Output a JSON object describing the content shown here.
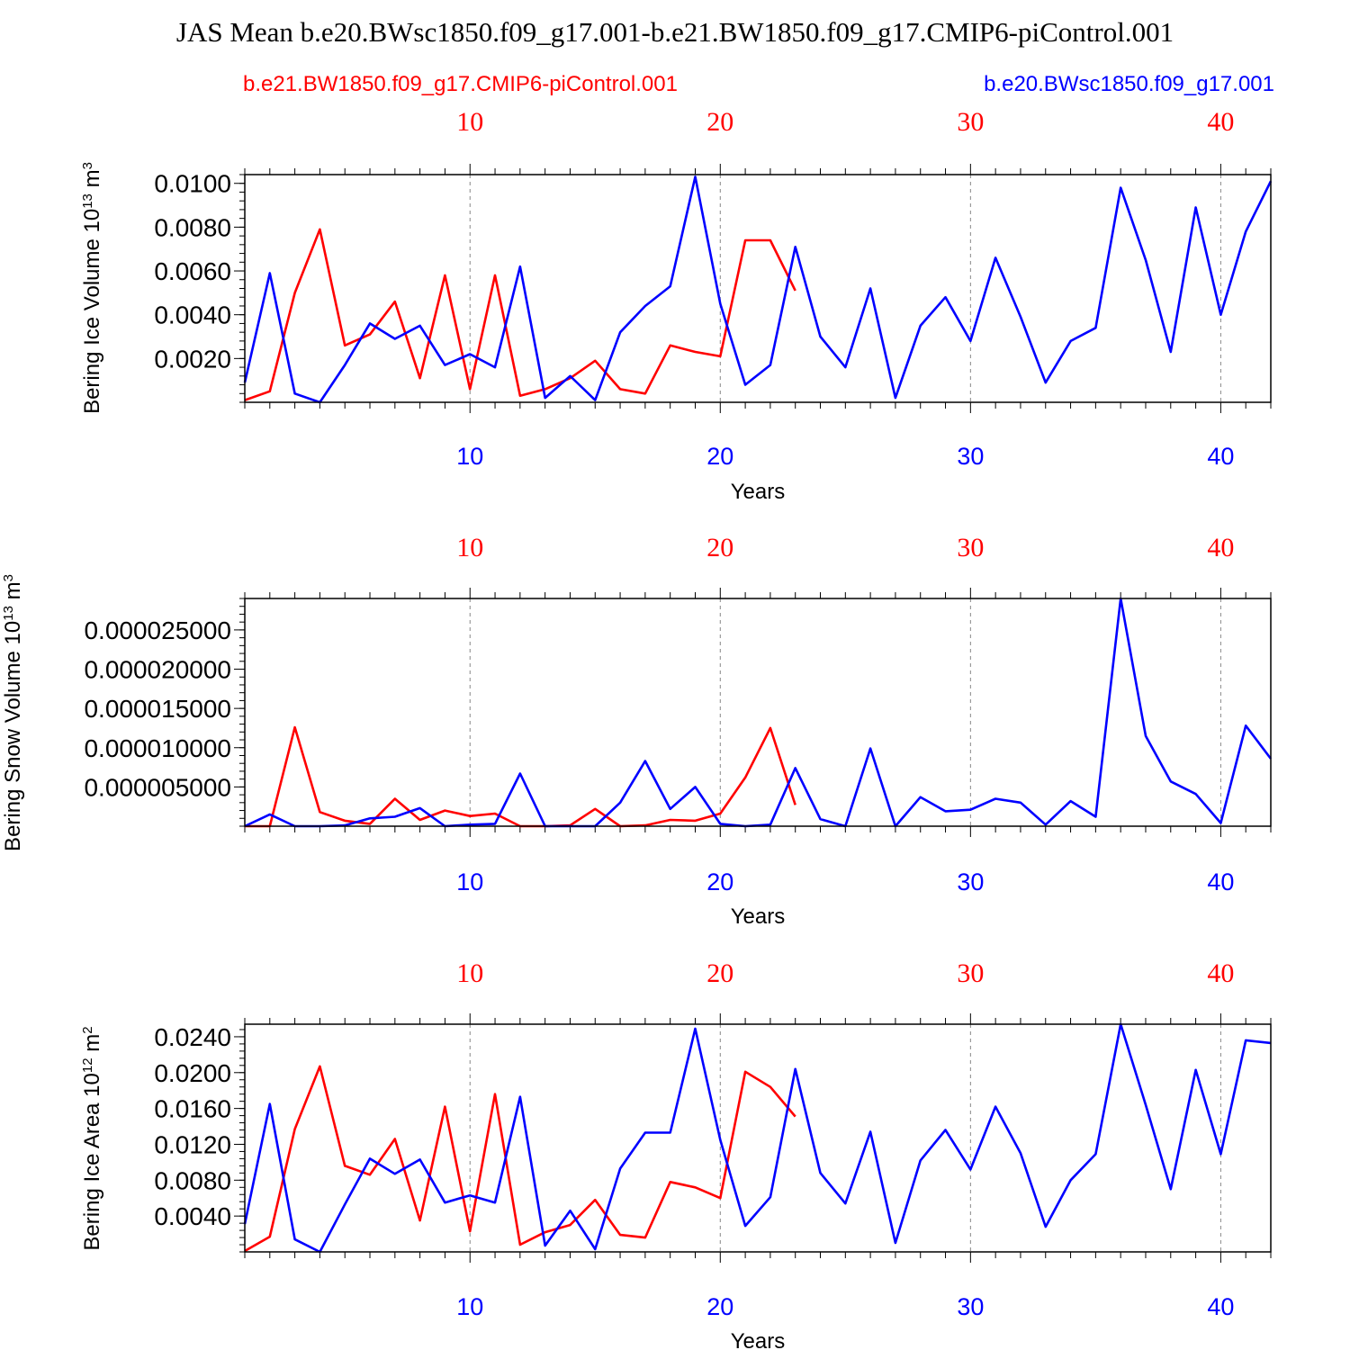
{
  "chart_data": {
    "type": "line",
    "title": "JAS Mean b.e20.BWsc1850.f09_g17.001-b.e21.BW1850.f09_g17.CMIP6-piControl.001",
    "colors": {
      "red_series": "#ff0000",
      "blue_series": "#0000ff",
      "axis": "#000000",
      "grid": "#888888"
    },
    "legend": {
      "left": "b.e21.BW1850.f09_g17.CMIP6-piControl.001",
      "right": "b.e20.BWsc1850.f09_g17.001"
    },
    "xlim": [
      1,
      42
    ],
    "top_ticks": [
      "10",
      "20",
      "30",
      "40"
    ],
    "bottom_ticks": [
      "10",
      "20",
      "30",
      "40"
    ],
    "xlabel": "Years",
    "panels": [
      {
        "ylabel": "Bering Ice Volume 10",
        "ylabel_exp": "13",
        "ylabel_unit": " m",
        "ylabel_unit_exp": "3",
        "ylim": [
          0,
          0.0104
        ],
        "yticks": [
          0.002,
          0.004,
          0.006,
          0.008,
          0.01
        ],
        "ytick_labels": [
          "0.0020",
          "0.0040",
          "0.0060",
          "0.0080",
          "0.0100"
        ],
        "series": [
          {
            "name": "b.e21.BW1850.f09_g17.CMIP6-piControl.001",
            "color": "#ff0000",
            "x": [
              1,
              2,
              3,
              4,
              5,
              6,
              7,
              8,
              9,
              10,
              11,
              12,
              13,
              14,
              15,
              16,
              17,
              18,
              19,
              20,
              21,
              22,
              23
            ],
            "values": [
              0.0001,
              0.0005,
              0.005,
              0.0079,
              0.0026,
              0.0031,
              0.0046,
              0.0011,
              0.0058,
              0.0006,
              0.0058,
              0.0003,
              0.0006,
              0.0011,
              0.0019,
              0.0006,
              0.0004,
              0.0026,
              0.0023,
              0.0021,
              0.0074,
              0.0074,
              0.0051
            ]
          },
          {
            "name": "b.e20.BWsc1850.f09_g17.001",
            "color": "#0000ff",
            "x": [
              1,
              2,
              3,
              4,
              5,
              6,
              7,
              8,
              9,
              10,
              11,
              12,
              13,
              14,
              15,
              16,
              17,
              18,
              19,
              20,
              21,
              22,
              23,
              24,
              25,
              26,
              27,
              28,
              29,
              30,
              31,
              32,
              33,
              34,
              35,
              36,
              37,
              38,
              39,
              40,
              41,
              42
            ],
            "values": [
              0.0009,
              0.0059,
              0.0004,
              0.0,
              0.0017,
              0.0036,
              0.0029,
              0.0035,
              0.0017,
              0.0022,
              0.0016,
              0.0062,
              0.0002,
              0.0012,
              0.0001,
              0.0032,
              0.0044,
              0.0053,
              0.0103,
              0.0045,
              0.0008,
              0.0017,
              0.0071,
              0.003,
              0.0016,
              0.0052,
              0.0002,
              0.0035,
              0.0048,
              0.0028,
              0.0066,
              0.0039,
              0.0009,
              0.0028,
              0.0034,
              0.0098,
              0.0065,
              0.0023,
              0.0089,
              0.004,
              0.0078,
              0.0101
            ]
          }
        ]
      },
      {
        "ylabel": "Bering Snow Volume 10",
        "ylabel_exp": "13",
        "ylabel_unit": " m",
        "ylabel_unit_exp": "3",
        "ylim": [
          0,
          2.9e-05
        ],
        "yticks": [
          5e-06,
          1e-05,
          1.5e-05,
          2e-05,
          2.5e-05
        ],
        "ytick_labels": [
          "0.000005000",
          "0.000010000",
          "0.000015000",
          "0.000020000",
          "0.000025000"
        ],
        "series": [
          {
            "name": "b.e21.BW1850.f09_g17.CMIP6-piControl.001",
            "color": "#ff0000",
            "x": [
              1,
              2,
              3,
              4,
              5,
              6,
              7,
              8,
              9,
              10,
              11,
              12,
              13,
              14,
              15,
              16,
              17,
              18,
              19,
              20,
              21,
              22,
              23
            ],
            "values": [
              0.0,
              0.0,
              1.26e-05,
              1.8e-06,
              7e-07,
              3e-07,
              3.5e-06,
              8e-07,
              2e-06,
              1.3e-06,
              1.6e-06,
              0.0,
              0.0,
              1e-07,
              2.2e-06,
              0.0,
              1e-07,
              8e-07,
              7e-07,
              1.6e-06,
              6.2e-06,
              1.25e-05,
              2.7e-06
            ]
          },
          {
            "name": "b.e20.BWsc1850.f09_g17.001",
            "color": "#0000ff",
            "x": [
              1,
              2,
              3,
              4,
              5,
              6,
              7,
              8,
              9,
              10,
              11,
              12,
              13,
              14,
              15,
              16,
              17,
              18,
              19,
              20,
              21,
              22,
              23,
              24,
              25,
              26,
              27,
              28,
              29,
              30,
              31,
              32,
              33,
              34,
              35,
              36,
              37,
              38,
              39,
              40,
              41,
              42
            ],
            "values": [
              0.0,
              1.5e-06,
              0.0,
              0.0,
              1e-07,
              1e-06,
              1.2e-06,
              2.3e-06,
              0.0,
              2e-07,
              3e-07,
              6.7e-06,
              0.0,
              0.0,
              0.0,
              3e-06,
              8.3e-06,
              2.2e-06,
              5e-06,
              3e-07,
              0.0,
              2e-07,
              7.4e-06,
              9e-07,
              0.0,
              9.9e-06,
              0.0,
              3.7e-06,
              1.9e-06,
              2.1e-06,
              3.5e-06,
              3e-06,
              2e-07,
              3.2e-06,
              1.2e-06,
              2.9e-05,
              1.15e-05,
              5.7e-06,
              4.1e-06,
              4e-07,
              1.28e-05,
              8.6e-06
            ]
          }
        ]
      },
      {
        "ylabel": "Bering Ice Area 10",
        "ylabel_exp": "12",
        "ylabel_unit": " m",
        "ylabel_unit_exp": "2",
        "ylim": [
          0,
          0.0254
        ],
        "yticks": [
          0.004,
          0.008,
          0.012,
          0.016,
          0.02,
          0.024
        ],
        "ytick_labels": [
          "0.0040",
          "0.0080",
          "0.0120",
          "0.0160",
          "0.0200",
          "0.0240"
        ],
        "series": [
          {
            "name": "b.e21.BW1850.f09_g17.CMIP6-piControl.001",
            "color": "#ff0000",
            "x": [
              1,
              2,
              3,
              4,
              5,
              6,
              7,
              8,
              9,
              10,
              11,
              12,
              13,
              14,
              15,
              16,
              17,
              18,
              19,
              20,
              21,
              22,
              23
            ],
            "values": [
              0.0001,
              0.0017,
              0.0137,
              0.0207,
              0.0096,
              0.0086,
              0.0126,
              0.0035,
              0.0162,
              0.0023,
              0.0176,
              0.0008,
              0.0022,
              0.003,
              0.0058,
              0.0019,
              0.0016,
              0.0078,
              0.0072,
              0.006,
              0.0201,
              0.0184,
              0.0151
            ]
          },
          {
            "name": "b.e20.BWsc1850.f09_g17.001",
            "color": "#0000ff",
            "x": [
              1,
              2,
              3,
              4,
              5,
              6,
              7,
              8,
              9,
              10,
              11,
              12,
              13,
              14,
              15,
              16,
              17,
              18,
              19,
              20,
              21,
              22,
              23,
              24,
              25,
              26,
              27,
              28,
              29,
              30,
              31,
              32,
              33,
              34,
              35,
              36,
              37,
              38,
              39,
              40,
              41,
              42
            ],
            "values": [
              0.0031,
              0.0165,
              0.0014,
              0.0,
              0.0053,
              0.0104,
              0.0087,
              0.0103,
              0.0055,
              0.0063,
              0.0055,
              0.0173,
              0.0007,
              0.0046,
              0.0003,
              0.0093,
              0.0133,
              0.0133,
              0.0249,
              0.0125,
              0.0029,
              0.0061,
              0.0204,
              0.0088,
              0.0054,
              0.0134,
              0.001,
              0.0102,
              0.0136,
              0.0092,
              0.0162,
              0.011,
              0.0028,
              0.008,
              0.0109,
              0.0254,
              0.0164,
              0.007,
              0.0203,
              0.0109,
              0.0236,
              0.0233
            ]
          }
        ]
      }
    ]
  }
}
